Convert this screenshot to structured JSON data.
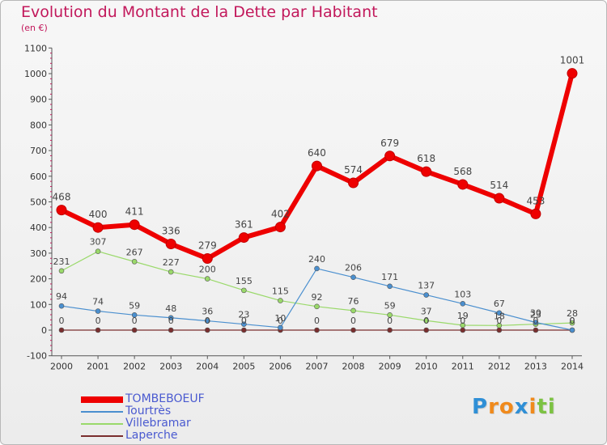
{
  "title": "Evolution du Montant de la Dette par Habitant",
  "subtitle": "(en €)",
  "chart_data": {
    "type": "line",
    "x": [
      "2000",
      "2001",
      "2002",
      "2003",
      "2004",
      "2005",
      "2006",
      "2007",
      "2008",
      "2009",
      "2010",
      "2011",
      "2012",
      "2013",
      "2014"
    ],
    "ylim": [
      -100,
      1100
    ],
    "yticks": [
      -100,
      0,
      100,
      200,
      300,
      400,
      500,
      600,
      700,
      800,
      900,
      1000,
      1100
    ],
    "grid": false,
    "legend_position": "bottom-left",
    "series": [
      {
        "name": "TOMBEBOEUF",
        "color": "#ee0000",
        "values": [
          468,
          400,
          411,
          336,
          279,
          361,
          402,
          640,
          574,
          679,
          618,
          568,
          514,
          453,
          1001
        ],
        "labels": [
          "468",
          "400",
          "411",
          "336",
          "279",
          "361",
          "402",
          "640",
          "574",
          "679",
          "618",
          "568",
          "514",
          "453",
          "1001"
        ]
      },
      {
        "name": "Tourtrès",
        "color": "#4a8fcf",
        "values": [
          94,
          74,
          59,
          48,
          36,
          23,
          10,
          240,
          206,
          171,
          137,
          103,
          67,
          30,
          0
        ],
        "labels": [
          "94",
          "74",
          "59",
          "48",
          "36",
          "23",
          "10",
          "240",
          "206",
          "171",
          "137",
          "103",
          "67",
          "30",
          "0"
        ]
      },
      {
        "name": "Villebramar",
        "color": "#9ad96a",
        "values": [
          231,
          307,
          267,
          227,
          200,
          155,
          115,
          92,
          76,
          59,
          37,
          19,
          18,
          23,
          28
        ],
        "labels": [
          "231",
          "307",
          "267",
          "227",
          "200",
          "155",
          "115",
          "92",
          "76",
          "59",
          "37",
          "19",
          "18",
          "23",
          "28"
        ]
      },
      {
        "name": "Laperche",
        "color": "#7a2e2e",
        "values": [
          0,
          0,
          0,
          0,
          0,
          0,
          0,
          0,
          0,
          0,
          0,
          0,
          0,
          0,
          0
        ],
        "labels": [
          "0",
          "0",
          "0",
          "0",
          "0",
          "0",
          "0",
          "0",
          "0",
          "0",
          "0",
          "0",
          "0",
          "0",
          "0"
        ]
      }
    ]
  },
  "logo": {
    "letters": [
      "P",
      "r",
      "o",
      "x",
      "i",
      "t",
      "i"
    ],
    "colors": [
      "#2f8fd6",
      "#f08a1c",
      "#f08a1c",
      "#2f8fd6",
      "#f08a1c",
      "#7cc242",
      "#7cc242"
    ]
  }
}
